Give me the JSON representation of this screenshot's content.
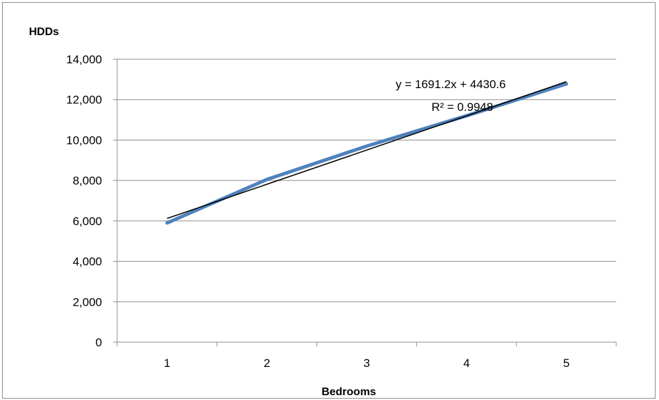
{
  "chart_data": {
    "type": "line",
    "title": "",
    "xlabel": "Bedrooms",
    "ylabel": "HDDs",
    "categories": [
      "1",
      "2",
      "3",
      "4",
      "5"
    ],
    "series": [
      {
        "values": [
          5900,
          8050,
          9700,
          11200,
          12780
        ],
        "color": "#4f81bd"
      }
    ],
    "trendline": {
      "type": "linear",
      "slope": 1691.2,
      "intercept": 4430.6,
      "equation": "y = 1691.2x + 4430.6",
      "r_squared": "R² = 0.9948",
      "color": "#000000"
    },
    "yticks": [
      "0",
      "2,000",
      "4,000",
      "6,000",
      "8,000",
      "10,000",
      "12,000",
      "14,000"
    ],
    "ylim": [
      0,
      14000
    ],
    "grid": true,
    "legend": "none"
  }
}
